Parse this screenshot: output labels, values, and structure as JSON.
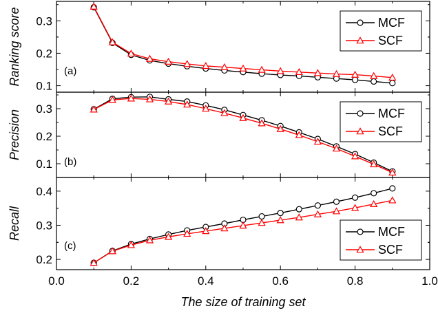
{
  "chart_data": [
    {
      "type": "line",
      "panel_label": "(a)",
      "ylabel": "Ranking score",
      "ylim": [
        0.08,
        0.36
      ],
      "yticks": [
        0.1,
        0.2,
        0.3
      ],
      "yticklabels": [
        "0.1",
        "0.2",
        "0.3"
      ],
      "legend_position": "top-right",
      "series": [
        {
          "name": "MCF",
          "color": "#000000",
          "marker": "circle",
          "x": [
            0.1,
            0.15,
            0.2,
            0.25,
            0.3,
            0.35,
            0.4,
            0.45,
            0.5,
            0.55,
            0.6,
            0.65,
            0.7,
            0.75,
            0.8,
            0.85,
            0.9
          ],
          "values": [
            0.342,
            0.232,
            0.195,
            0.178,
            0.168,
            0.16,
            0.153,
            0.147,
            0.142,
            0.137,
            0.133,
            0.13,
            0.126,
            0.122,
            0.118,
            0.113,
            0.108
          ]
        },
        {
          "name": "SCF",
          "color": "#ff0000",
          "marker": "triangle",
          "x": [
            0.1,
            0.15,
            0.2,
            0.25,
            0.3,
            0.35,
            0.4,
            0.45,
            0.5,
            0.55,
            0.6,
            0.65,
            0.7,
            0.75,
            0.8,
            0.85,
            0.9
          ],
          "values": [
            0.344,
            0.234,
            0.199,
            0.183,
            0.174,
            0.167,
            0.161,
            0.157,
            0.153,
            0.149,
            0.145,
            0.142,
            0.139,
            0.136,
            0.134,
            0.13,
            0.125
          ]
        }
      ]
    },
    {
      "type": "line",
      "panel_label": "(b)",
      "ylabel": "Precision",
      "ylim": [
        0.05,
        0.36
      ],
      "yticks": [
        0.1,
        0.2,
        0.3
      ],
      "yticklabels": [
        "0.1",
        "0.2",
        "0.3"
      ],
      "legend_position": "top-right",
      "series": [
        {
          "name": "MCF",
          "color": "#000000",
          "marker": "circle",
          "x": [
            0.1,
            0.15,
            0.2,
            0.25,
            0.3,
            0.35,
            0.4,
            0.45,
            0.5,
            0.55,
            0.6,
            0.65,
            0.7,
            0.75,
            0.8,
            0.85,
            0.9
          ],
          "values": [
            0.298,
            0.336,
            0.342,
            0.343,
            0.334,
            0.326,
            0.312,
            0.296,
            0.277,
            0.258,
            0.237,
            0.214,
            0.19,
            0.163,
            0.135,
            0.104,
            0.072
          ]
        },
        {
          "name": "SCF",
          "color": "#ff0000",
          "marker": "triangle",
          "x": [
            0.1,
            0.15,
            0.2,
            0.25,
            0.3,
            0.35,
            0.4,
            0.45,
            0.5,
            0.55,
            0.6,
            0.65,
            0.7,
            0.75,
            0.8,
            0.85,
            0.9
          ],
          "values": [
            0.297,
            0.332,
            0.337,
            0.334,
            0.326,
            0.315,
            0.3,
            0.284,
            0.266,
            0.247,
            0.226,
            0.204,
            0.18,
            0.155,
            0.127,
            0.098,
            0.068
          ]
        }
      ]
    },
    {
      "type": "line",
      "panel_label": "(c)",
      "ylabel": "Recall",
      "xlabel": "The size of training set",
      "ylim": [
        0.17,
        0.44
      ],
      "yticks": [
        0.2,
        0.3,
        0.4
      ],
      "yticklabels": [
        "0.2",
        "0.3",
        "0.4"
      ],
      "xlim": [
        0.0,
        1.0
      ],
      "xticks": [
        0.0,
        0.2,
        0.4,
        0.6,
        0.8,
        1.0
      ],
      "xticklabels": [
        "0.0",
        "0.2",
        "0.4",
        "0.6",
        "0.8",
        "1.0"
      ],
      "legend_position": "bottom-right",
      "series": [
        {
          "name": "MCF",
          "color": "#000000",
          "marker": "circle",
          "x": [
            0.1,
            0.15,
            0.2,
            0.25,
            0.3,
            0.35,
            0.4,
            0.45,
            0.5,
            0.55,
            0.6,
            0.65,
            0.7,
            0.75,
            0.8,
            0.85,
            0.9
          ],
          "values": [
            0.19,
            0.225,
            0.245,
            0.26,
            0.273,
            0.285,
            0.295,
            0.305,
            0.316,
            0.326,
            0.336,
            0.347,
            0.358,
            0.369,
            0.381,
            0.394,
            0.408
          ]
        },
        {
          "name": "SCF",
          "color": "#ff0000",
          "marker": "triangle",
          "x": [
            0.1,
            0.15,
            0.2,
            0.25,
            0.3,
            0.35,
            0.4,
            0.45,
            0.5,
            0.55,
            0.6,
            0.65,
            0.7,
            0.75,
            0.8,
            0.85,
            0.9
          ],
          "values": [
            0.19,
            0.224,
            0.242,
            0.256,
            0.266,
            0.275,
            0.283,
            0.291,
            0.299,
            0.307,
            0.315,
            0.323,
            0.332,
            0.341,
            0.351,
            0.362,
            0.373
          ]
        }
      ]
    }
  ]
}
